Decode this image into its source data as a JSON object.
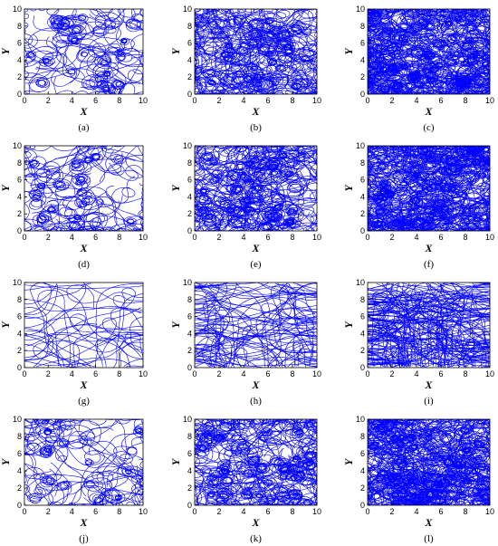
{
  "chart_data": [
    {
      "label": "(a)",
      "type": "line",
      "xlabel": "X",
      "ylabel": "Y",
      "xlim": [
        0,
        10
      ],
      "ylim": [
        0,
        10
      ],
      "xticks": [
        "0",
        "2",
        "4",
        "6",
        "8",
        "10"
      ],
      "yticks": [
        "0",
        "2",
        "4",
        "6",
        "8",
        "10"
      ],
      "color": "#0000ff",
      "density": "low",
      "distribution": "uniform"
    },
    {
      "label": "(b)",
      "type": "line",
      "xlabel": "X",
      "ylabel": "Y",
      "xlim": [
        0,
        10
      ],
      "ylim": [
        0,
        10
      ],
      "xticks": [
        "0",
        "2",
        "4",
        "6",
        "8",
        "10"
      ],
      "yticks": [
        "0",
        "2",
        "4",
        "6",
        "8",
        "10"
      ],
      "color": "#0000ff",
      "density": "medium",
      "distribution": "uniform"
    },
    {
      "label": "(c)",
      "type": "line",
      "xlabel": "X",
      "ylabel": "Y",
      "xlim": [
        0,
        10
      ],
      "ylim": [
        0,
        10
      ],
      "xticks": [
        "0",
        "2",
        "4",
        "6",
        "8",
        "10"
      ],
      "yticks": [
        "0",
        "2",
        "4",
        "6",
        "8",
        "10"
      ],
      "color": "#0000ff",
      "density": "high",
      "distribution": "uniform"
    },
    {
      "label": "(d)",
      "type": "line",
      "xlabel": "X",
      "ylabel": "Y",
      "xlim": [
        0,
        10
      ],
      "ylim": [
        0,
        10
      ],
      "xticks": [
        "0",
        "2",
        "4",
        "6",
        "8",
        "10"
      ],
      "yticks": [
        "0",
        "2",
        "4",
        "6",
        "8",
        "10"
      ],
      "color": "#0000ff",
      "density": "low",
      "distribution": "clustered"
    },
    {
      "label": "(e)",
      "type": "line",
      "xlabel": "X",
      "ylabel": "Y",
      "xlim": [
        0,
        10
      ],
      "ylim": [
        0,
        10
      ],
      "xticks": [
        "0",
        "2",
        "4",
        "6",
        "8",
        "10"
      ],
      "yticks": [
        "0",
        "2",
        "4",
        "6",
        "8",
        "10"
      ],
      "color": "#0000ff",
      "density": "medium",
      "distribution": "clustered"
    },
    {
      "label": "(f)",
      "type": "line",
      "xlabel": "X",
      "ylabel": "Y",
      "xlim": [
        0,
        10
      ],
      "ylim": [
        0,
        10
      ],
      "xticks": [
        "0",
        "2",
        "4",
        "6",
        "8",
        "10"
      ],
      "yticks": [
        "0",
        "2",
        "4",
        "6",
        "8",
        "10"
      ],
      "color": "#0000ff",
      "density": "high",
      "distribution": "clustered"
    },
    {
      "label": "(g)",
      "type": "line",
      "xlabel": "X",
      "ylabel": "Y",
      "xlim": [
        0,
        10
      ],
      "ylim": [
        0,
        10
      ],
      "xticks": [
        "0",
        "2",
        "4",
        "6",
        "8",
        "10"
      ],
      "yticks": [
        "0",
        "2",
        "4",
        "6",
        "8",
        "10"
      ],
      "color": "#0000ff",
      "density": "low",
      "distribution": "horizontal"
    },
    {
      "label": "(h)",
      "type": "line",
      "xlabel": "X",
      "ylabel": "Y",
      "xlim": [
        0,
        10
      ],
      "ylim": [
        0,
        10
      ],
      "xticks": [
        "0",
        "2",
        "4",
        "6",
        "8",
        "10"
      ],
      "yticks": [
        "0",
        "2",
        "4",
        "6",
        "8",
        "10"
      ],
      "color": "#0000ff",
      "density": "medium",
      "distribution": "horizontal"
    },
    {
      "label": "(i)",
      "type": "line",
      "xlabel": "X",
      "ylabel": "Y",
      "xlim": [
        0,
        10
      ],
      "ylim": [
        0,
        10
      ],
      "xticks": [
        "0",
        "2",
        "4",
        "6",
        "8",
        "10"
      ],
      "yticks": [
        "0",
        "2",
        "4",
        "6",
        "8",
        "10"
      ],
      "color": "#0000ff",
      "density": "high",
      "distribution": "horizontal"
    },
    {
      "label": "(j)",
      "type": "line",
      "xlabel": "X",
      "ylabel": "Y",
      "xlim": [
        0,
        10
      ],
      "ylim": [
        0,
        10
      ],
      "xticks": [
        "0",
        "2",
        "4",
        "6",
        "8",
        "10"
      ],
      "yticks": [
        "0",
        "2",
        "4",
        "6",
        "8",
        "10"
      ],
      "color": "#0000ff",
      "density": "low",
      "distribution": "mixed"
    },
    {
      "label": "(k)",
      "type": "line",
      "xlabel": "X",
      "ylabel": "Y",
      "xlim": [
        0,
        10
      ],
      "ylim": [
        0,
        10
      ],
      "xticks": [
        "0",
        "2",
        "4",
        "6",
        "8",
        "10"
      ],
      "yticks": [
        "0",
        "2",
        "4",
        "6",
        "8",
        "10"
      ],
      "color": "#0000ff",
      "density": "medium",
      "distribution": "mixed"
    },
    {
      "label": "(l)",
      "type": "line",
      "xlabel": "X",
      "ylabel": "Y",
      "xlim": [
        0,
        10
      ],
      "ylim": [
        0,
        10
      ],
      "xticks": [
        "0",
        "2",
        "4",
        "6",
        "8",
        "10"
      ],
      "yticks": [
        "0",
        "2",
        "4",
        "6",
        "8",
        "10"
      ],
      "color": "#0000ff",
      "density": "high",
      "distribution": "mixed"
    }
  ]
}
